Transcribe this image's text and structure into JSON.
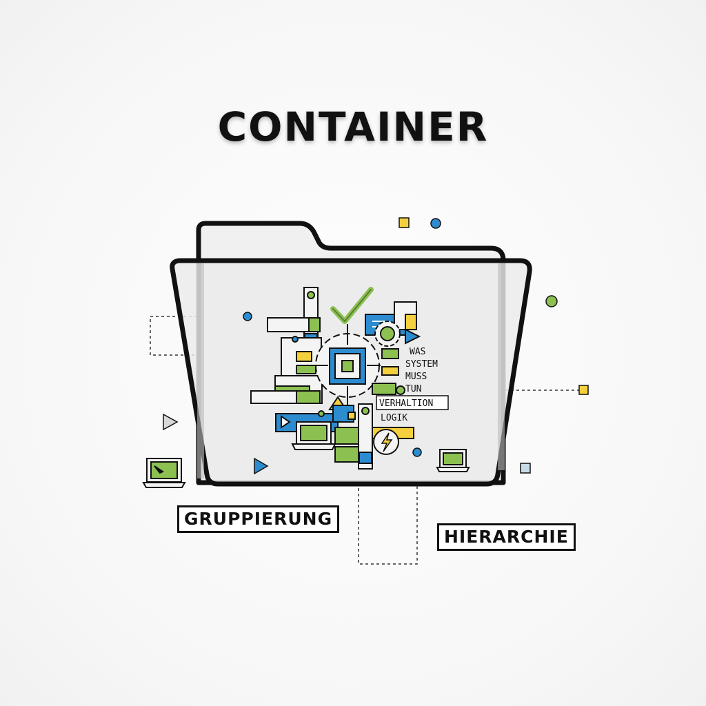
{
  "title": "CONTAINER",
  "labels": {
    "grouping": "GRUPPIERUNG",
    "hierarchy": "HIERARCHIE"
  },
  "inner_text": {
    "line1": "WAS",
    "line2": "SYSTEM",
    "line3": "MUSS",
    "line4": "TUN",
    "behavior": "VERHALTION",
    "logic": "LOGIK"
  },
  "colors": {
    "blue": "#2d8ccf",
    "green": "#8cc152",
    "yellow": "#f4d03f",
    "outline": "#111111",
    "folder_fill": "#ececec"
  },
  "icons": [
    "folder-icon",
    "gear-icon",
    "checkmark-icon",
    "lightning-icon",
    "laptop-icon",
    "play-icon"
  ]
}
